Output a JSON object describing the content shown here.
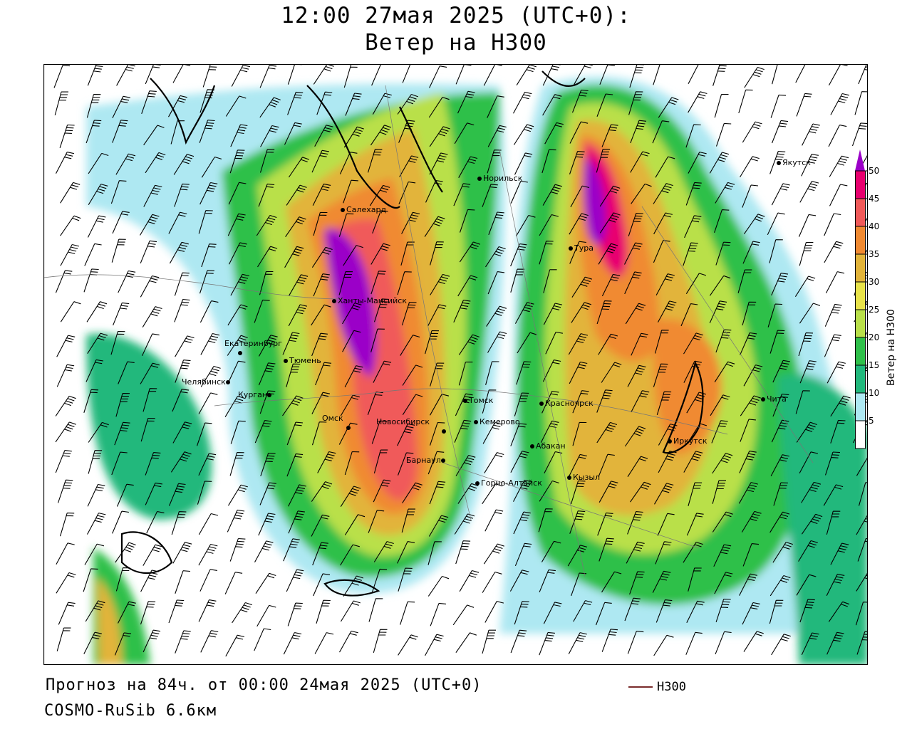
{
  "title": {
    "line1": "12:00 27мая 2025 (UTC+0):",
    "line2": "Ветер на H300"
  },
  "colorbar": {
    "title": "Ветер на H300",
    "ticks": [
      "50",
      "45",
      "40",
      "35",
      "30",
      "25",
      "20",
      "15",
      "10",
      "5"
    ],
    "colors": [
      "#9b00c8",
      "#e8006f",
      "#f05a5a",
      "#f08a32",
      "#e2b43a",
      "#e8e34a",
      "#b9e04a",
      "#2fc04a",
      "#21b87c",
      "#aee8f2",
      "#ffffff"
    ]
  },
  "cities": [
    {
      "name": "Салехард"
    },
    {
      "name": "Норильск"
    },
    {
      "name": "Якутск"
    },
    {
      "name": "Тура"
    },
    {
      "name": "Ханты-Мансийск"
    },
    {
      "name": "Екатеринбург"
    },
    {
      "name": "Тюмень"
    },
    {
      "name": "Челябинск"
    },
    {
      "name": "Курган"
    },
    {
      "name": "Омск"
    },
    {
      "name": "Новосибирск"
    },
    {
      "name": "Томск"
    },
    {
      "name": "Кемерово"
    },
    {
      "name": "Барнаул"
    },
    {
      "name": "Горно-Алтайск"
    },
    {
      "name": "Красноярск"
    },
    {
      "name": "Абакан"
    },
    {
      "name": "Кызыл"
    },
    {
      "name": "Иркутск"
    },
    {
      "name": "Чита"
    }
  ],
  "footer": {
    "forecast": "Прогноз на 84ч. от 00:00 24мая 2025 (UTC+0)",
    "model": "COSMO-RuSib 6.6км"
  },
  "legend": {
    "label": "H300",
    "color": "#7a2b2b"
  }
}
